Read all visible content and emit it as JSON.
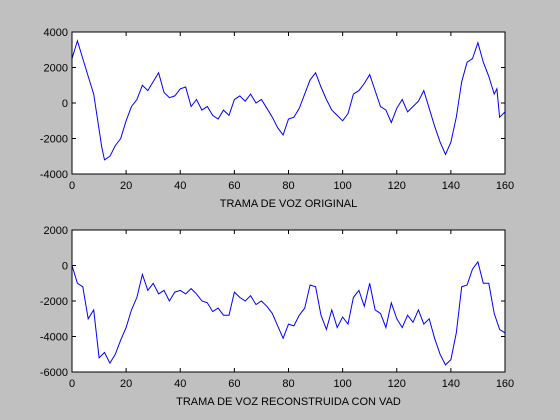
{
  "chart_data": [
    {
      "type": "line",
      "xlabel": "TRAMA DE VOZ ORIGINAL",
      "color": "#0000ff",
      "x": [
        0,
        2,
        4,
        6,
        8,
        10,
        11,
        12,
        14,
        16,
        18,
        20,
        22,
        24,
        26,
        28,
        30,
        32,
        34,
        36,
        38,
        40,
        42,
        44,
        46,
        48,
        50,
        52,
        54,
        56,
        58,
        60,
        62,
        64,
        66,
        68,
        70,
        72,
        74,
        76,
        78,
        80,
        82,
        84,
        86,
        88,
        90,
        92,
        94,
        96,
        98,
        100,
        102,
        104,
        106,
        108,
        110,
        112,
        114,
        116,
        118,
        120,
        122,
        124,
        126,
        128,
        130,
        132,
        134,
        136,
        138,
        140,
        142,
        144,
        146,
        148,
        150,
        152,
        154,
        156,
        157,
        158,
        160
      ],
      "values": [
        2500,
        3500,
        2500,
        1500,
        500,
        -1500,
        -2500,
        -3200,
        -3000,
        -2400,
        -2000,
        -1000,
        -200,
        200,
        1000,
        700,
        1200,
        1700,
        600,
        300,
        400,
        800,
        900,
        -200,
        200,
        -400,
        -200,
        -700,
        -900,
        -400,
        -700,
        200,
        400,
        100,
        500,
        0,
        200,
        -300,
        -800,
        -1400,
        -1800,
        -900,
        -800,
        -300,
        500,
        1300,
        1700,
        900,
        200,
        -400,
        -700,
        -1000,
        -600,
        500,
        700,
        1100,
        1600,
        700,
        -200,
        -400,
        -1100,
        -300,
        200,
        -500,
        -200,
        100,
        700,
        -300,
        -1300,
        -2200,
        -2900,
        -2200,
        -800,
        1200,
        2300,
        2500,
        3400,
        2300,
        1500,
        500,
        800,
        -800,
        -500
      ],
      "xlim": [
        0,
        160
      ],
      "xticks": [
        0,
        20,
        40,
        60,
        80,
        100,
        120,
        140,
        160
      ],
      "ylim": [
        -4000,
        4000
      ],
      "yticks": [
        -4000,
        -2000,
        0,
        2000,
        4000
      ]
    },
    {
      "type": "line",
      "xlabel": "TRAMA DE VOZ RECONSTRUIDA CON VAD",
      "color": "#0000ff",
      "x": [
        0,
        2,
        4,
        6,
        8,
        10,
        12,
        14,
        16,
        18,
        20,
        22,
        24,
        26,
        28,
        30,
        32,
        34,
        36,
        38,
        40,
        42,
        44,
        46,
        48,
        50,
        52,
        54,
        56,
        58,
        60,
        62,
        64,
        66,
        68,
        70,
        72,
        74,
        76,
        78,
        80,
        82,
        84,
        86,
        88,
        90,
        92,
        94,
        96,
        98,
        100,
        102,
        104,
        106,
        108,
        110,
        112,
        114,
        116,
        118,
        120,
        122,
        124,
        126,
        128,
        130,
        132,
        134,
        136,
        138,
        140,
        142,
        144,
        146,
        148,
        150,
        152,
        154,
        156,
        158,
        160
      ],
      "values": [
        0,
        -1000,
        -1200,
        -3000,
        -2500,
        -5200,
        -4900,
        -5500,
        -5000,
        -4200,
        -3500,
        -2500,
        -1800,
        -500,
        -1400,
        -1000,
        -1600,
        -1400,
        -2000,
        -1500,
        -1400,
        -1600,
        -1300,
        -1600,
        -2000,
        -2100,
        -2600,
        -2400,
        -2800,
        -2800,
        -1500,
        -1800,
        -2000,
        -1700,
        -2200,
        -2000,
        -2300,
        -2700,
        -3400,
        -4100,
        -3300,
        -3400,
        -2800,
        -2400,
        -1100,
        -1200,
        -2800,
        -3600,
        -2500,
        -3500,
        -2900,
        -3300,
        -1800,
        -1400,
        -2300,
        -1000,
        -2500,
        -2700,
        -3500,
        -2100,
        -3000,
        -3500,
        -2800,
        -3200,
        -2500,
        -3300,
        -3000,
        -4100,
        -5000,
        -5600,
        -5300,
        -3800,
        -1200,
        -1100,
        -200,
        200,
        -1000,
        -1000,
        -2700,
        -3600,
        -3800
      ],
      "xlim": [
        0,
        160
      ],
      "xticks": [
        0,
        20,
        40,
        60,
        80,
        100,
        120,
        140,
        160
      ],
      "ylim": [
        -6000,
        2000
      ],
      "yticks": [
        -6000,
        -4000,
        -2000,
        0,
        2000
      ]
    }
  ]
}
